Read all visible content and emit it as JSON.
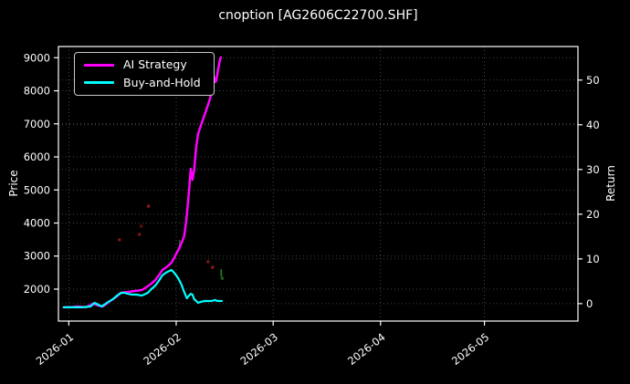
{
  "title": "cnoption [AG2606C22700.SHF]",
  "chart_data": {
    "type": "line",
    "title": "cnoption [AG2606C22700.SHF]",
    "background_color": "#000000",
    "text_color": "#ffffff",
    "grid": true,
    "grid_color": "#5a5a5a",
    "x_axis": {
      "label": "",
      "tick_labels": [
        "2026-01",
        "2026-02",
        "2026-03",
        "2026-04",
        "2026-05"
      ],
      "tick_days": [
        0,
        31,
        59,
        90,
        120
      ],
      "range_days": [
        -3,
        147
      ]
    },
    "y_left": {
      "label": "Price",
      "ticks": [
        2000,
        3000,
        4000,
        5000,
        6000,
        7000,
        8000,
        9000
      ],
      "range": [
        1034,
        9339
      ]
    },
    "y_right": {
      "label": "Return",
      "ticks": [
        0,
        10,
        20,
        30,
        40,
        50
      ],
      "range": [
        -3.9,
        57.5
      ]
    },
    "legend": {
      "position": "upper-left",
      "entries": [
        "AI Strategy",
        "Buy-and-Hold"
      ]
    },
    "series": [
      {
        "name": "AI Strategy",
        "color": "#ff00ff",
        "width": 2.5,
        "points": [
          [
            -1.5,
            1450
          ],
          [
            1,
            1455
          ],
          [
            2.4,
            1475
          ],
          [
            5,
            1450
          ],
          [
            7,
            1560
          ],
          [
            8.5,
            1505
          ],
          [
            9.8,
            1475
          ],
          [
            11.6,
            1615
          ],
          [
            13.5,
            1750
          ],
          [
            15,
            1890
          ],
          [
            17,
            1915
          ],
          [
            19,
            1945
          ],
          [
            21,
            1970
          ],
          [
            22,
            2030
          ],
          [
            23.5,
            2140
          ],
          [
            25,
            2275
          ],
          [
            26,
            2415
          ],
          [
            27,
            2580
          ],
          [
            27.8,
            2635
          ],
          [
            28.8,
            2715
          ],
          [
            29.6,
            2800
          ],
          [
            30.4,
            2940
          ],
          [
            31.2,
            3105
          ],
          [
            32,
            3270
          ],
          [
            32.8,
            3460
          ],
          [
            33.3,
            3600
          ],
          [
            33.9,
            4070
          ],
          [
            34.4,
            4620
          ],
          [
            34.9,
            5230
          ],
          [
            35.2,
            5640
          ],
          [
            35.5,
            5450
          ],
          [
            35.7,
            5310
          ],
          [
            36,
            5480
          ],
          [
            36.2,
            5615
          ],
          [
            36.8,
            6330
          ],
          [
            37.3,
            6690
          ],
          [
            38.1,
            6940
          ],
          [
            39.4,
            7325
          ],
          [
            40.7,
            7740
          ],
          [
            41.8,
            8265
          ],
          [
            41.9,
            8430
          ],
          [
            42.3,
            8265
          ],
          [
            42.6,
            8320
          ],
          [
            43.1,
            8650
          ],
          [
            43.7,
            8955
          ],
          [
            43.9,
            9010
          ]
        ]
      },
      {
        "name": "Buy-and-Hold",
        "color": "#00ffff",
        "width": 2.2,
        "points": [
          [
            -1.5,
            1450
          ],
          [
            1,
            1450
          ],
          [
            3.7,
            1450
          ],
          [
            6.3,
            1475
          ],
          [
            7.4,
            1585
          ],
          [
            8.5,
            1530
          ],
          [
            9.5,
            1475
          ],
          [
            11,
            1585
          ],
          [
            12.7,
            1695
          ],
          [
            14.3,
            1835
          ],
          [
            15.3,
            1890
          ],
          [
            16,
            1890
          ],
          [
            17,
            1860
          ],
          [
            18.3,
            1835
          ],
          [
            19.6,
            1835
          ],
          [
            21,
            1805
          ],
          [
            21.7,
            1835
          ],
          [
            22.8,
            1890
          ],
          [
            23.8,
            2000
          ],
          [
            25,
            2110
          ],
          [
            26,
            2250
          ],
          [
            27,
            2415
          ],
          [
            28,
            2495
          ],
          [
            29,
            2550
          ],
          [
            29.6,
            2580
          ],
          [
            30.2,
            2525
          ],
          [
            31,
            2415
          ],
          [
            31.7,
            2305
          ],
          [
            32.5,
            2140
          ],
          [
            33.3,
            1915
          ],
          [
            34.1,
            1725
          ],
          [
            34.7,
            1805
          ],
          [
            35.2,
            1860
          ],
          [
            35.7,
            1835
          ],
          [
            36.2,
            1695
          ],
          [
            36.8,
            1640
          ],
          [
            37.3,
            1585
          ],
          [
            38.1,
            1615
          ],
          [
            39.2,
            1640
          ],
          [
            40.2,
            1640
          ],
          [
            41.3,
            1640
          ],
          [
            42.1,
            1670
          ],
          [
            42.9,
            1640
          ],
          [
            43.7,
            1640
          ],
          [
            44.2,
            1640
          ]
        ]
      }
    ],
    "markers": [
      {
        "day": 14.6,
        "price": 3490,
        "color": "#7d1414",
        "shape": "dot"
      },
      {
        "day": 20.4,
        "price": 3655,
        "color": "#7d1414",
        "shape": "dot"
      },
      {
        "day": 20.9,
        "price": 3905,
        "color": "#5e0f0f",
        "shape": "dot"
      },
      {
        "day": 23.0,
        "price": 4510,
        "color": "#8b1717",
        "shape": "dot"
      },
      {
        "day": 40.2,
        "price": 2830,
        "color": "#7d1414",
        "shape": "dot"
      },
      {
        "day": 41.5,
        "price": 2660,
        "color": "#8b1717",
        "shape": "dot"
      },
      {
        "day": 32.0,
        "price": 3380,
        "color": "#1b5e1b",
        "shape": "dash"
      },
      {
        "day": 44.0,
        "price": 2490,
        "color": "#217d21",
        "shape": "dash"
      },
      {
        "day": 44.3,
        "price": 2330,
        "color": "#1b5e1b",
        "shape": "dot"
      }
    ]
  }
}
